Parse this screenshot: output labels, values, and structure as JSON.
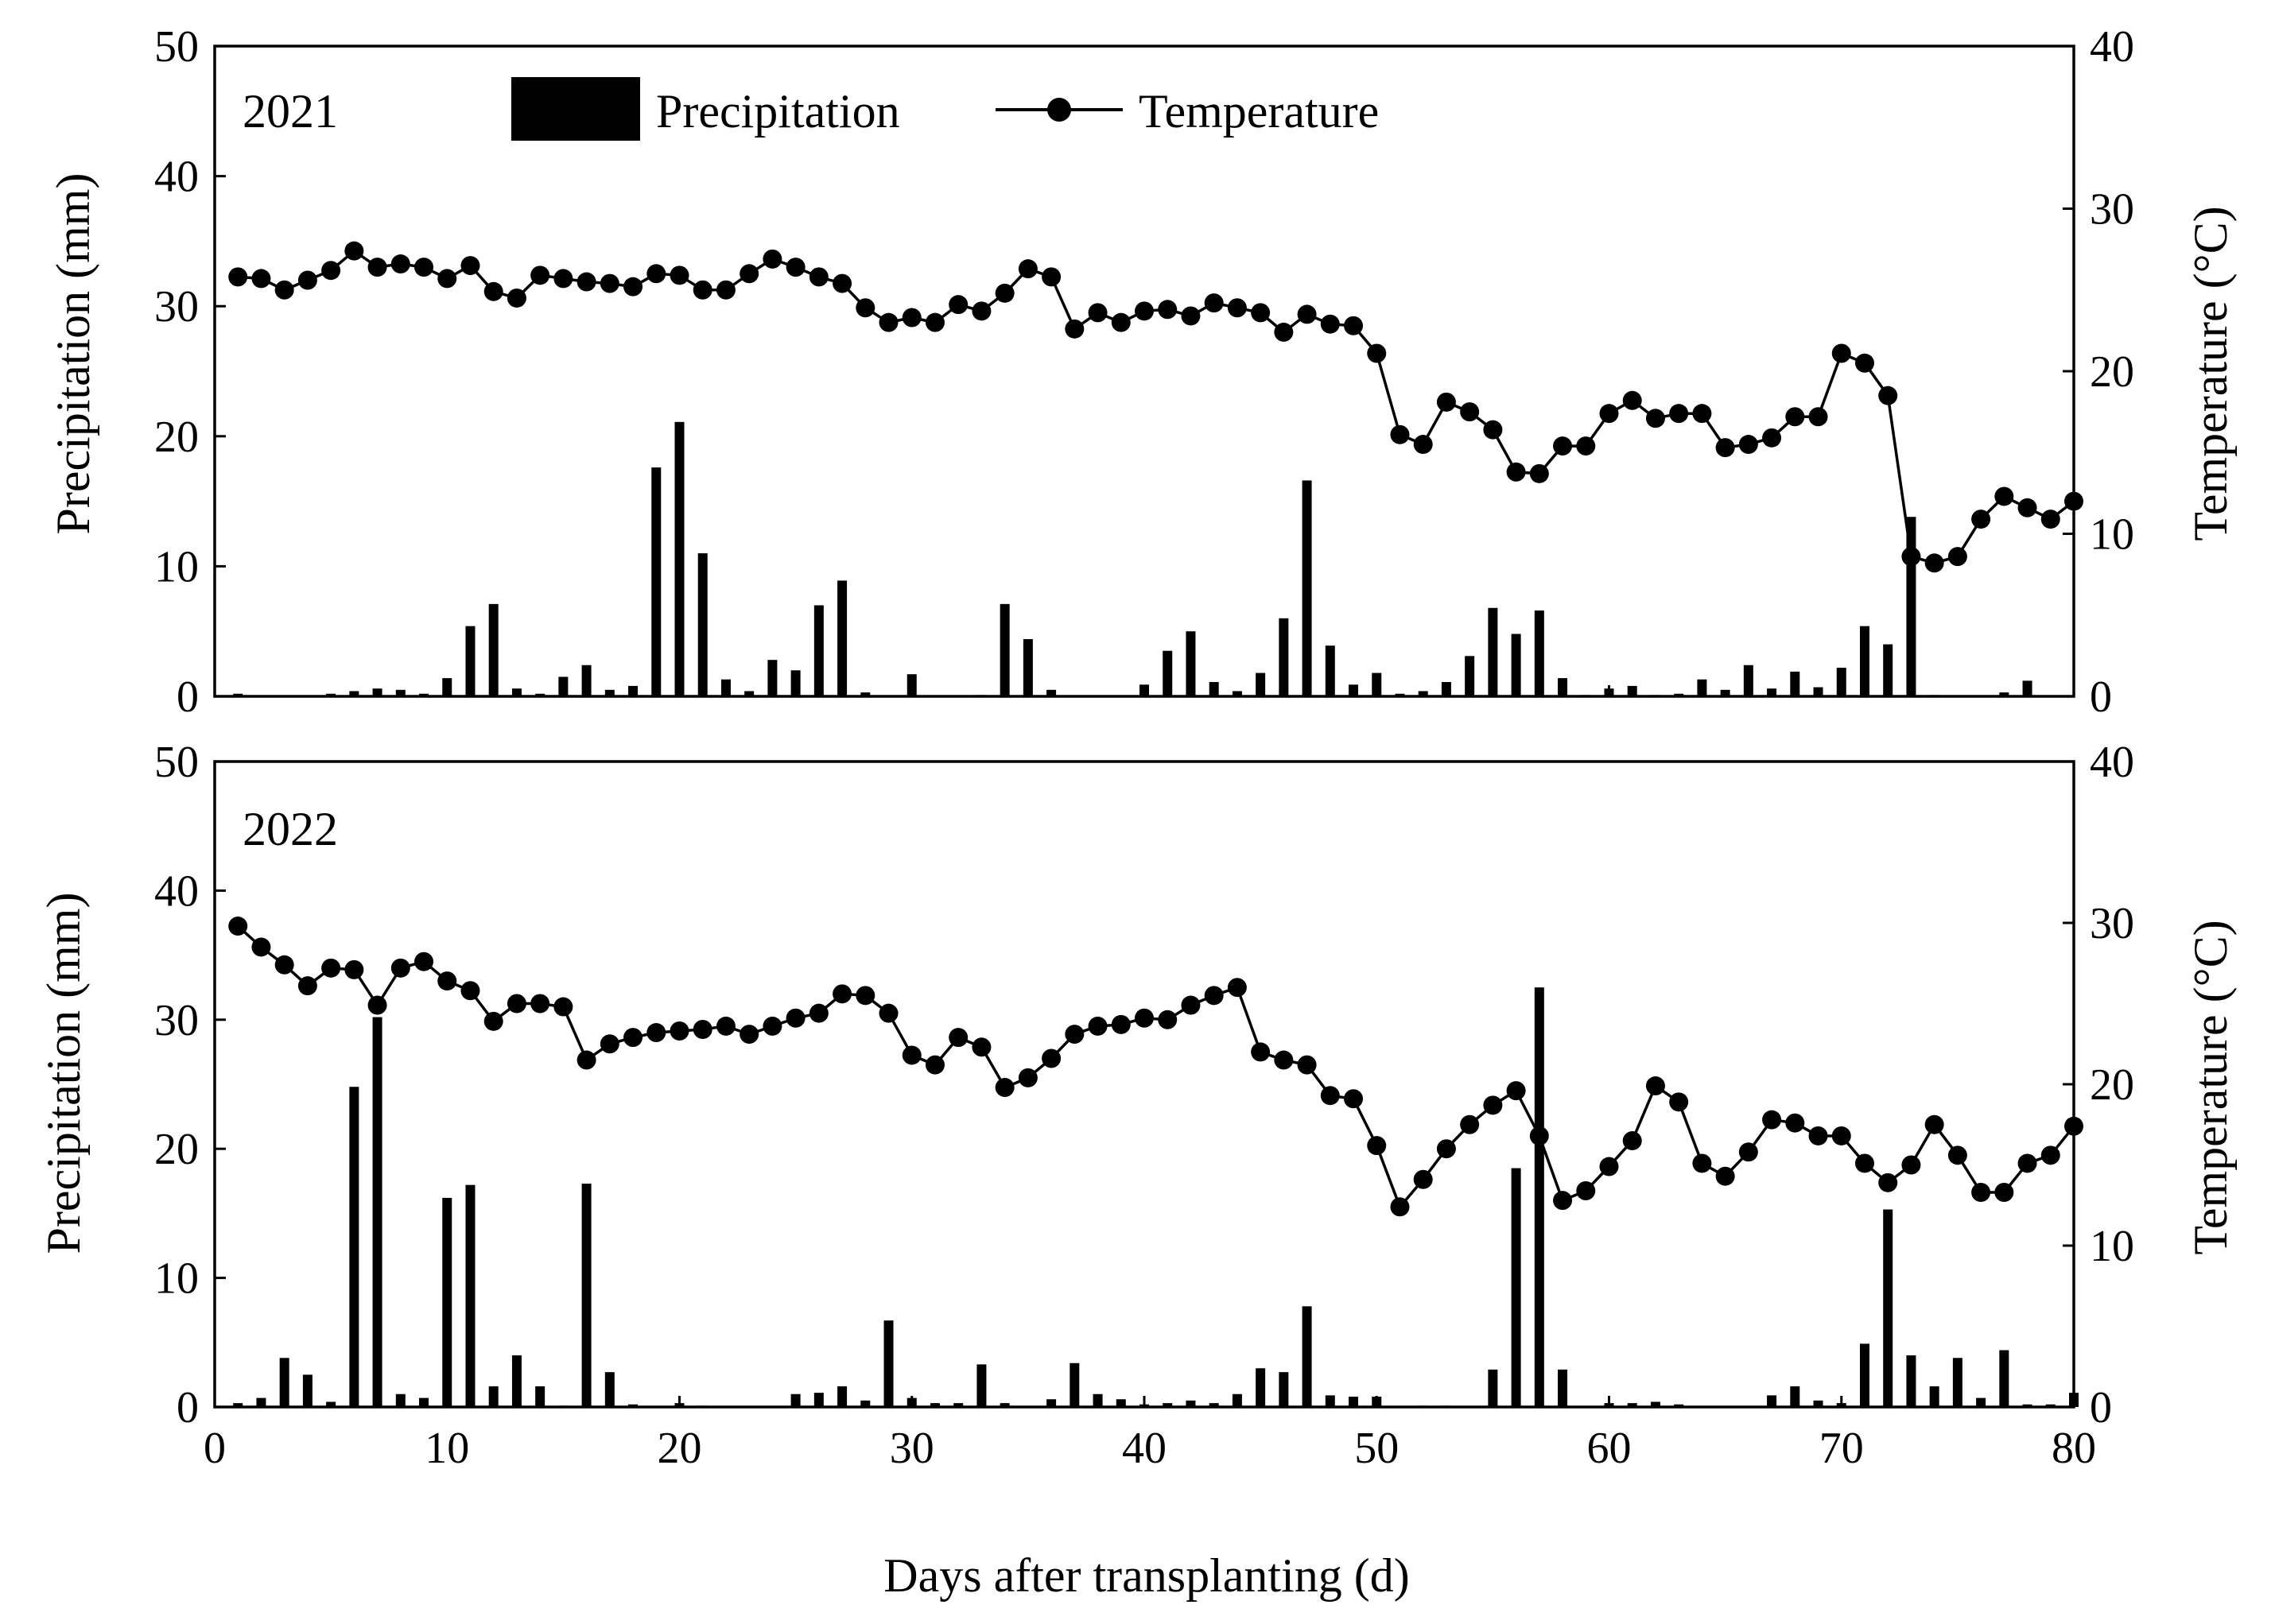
{
  "chart_data": [
    {
      "type": "bar+line",
      "panel_label": "2021",
      "x": [
        1,
        2,
        3,
        4,
        5,
        6,
        7,
        8,
        9,
        10,
        11,
        12,
        13,
        14,
        15,
        16,
        17,
        18,
        19,
        20,
        21,
        22,
        23,
        24,
        25,
        26,
        27,
        28,
        29,
        30,
        31,
        32,
        33,
        34,
        35,
        36,
        37,
        38,
        39,
        40,
        41,
        42,
        43,
        44,
        45,
        46,
        47,
        48,
        49,
        50,
        51,
        52,
        53,
        54,
        55,
        56,
        57,
        58,
        59,
        60,
        61,
        62,
        63,
        64,
        65,
        66,
        67,
        68,
        69,
        70,
        71,
        72,
        73,
        74,
        75,
        76,
        77,
        78,
        79,
        80
      ],
      "series": [
        {
          "name": "Precipitation",
          "kind": "bar",
          "axis": "left",
          "values": [
            0.2,
            0,
            0,
            0,
            0.2,
            0.4,
            0.6,
            0.5,
            0.2,
            1.4,
            5.4,
            7.1,
            0.6,
            0.2,
            1.5,
            2.4,
            0.5,
            0.8,
            17.6,
            21.1,
            11,
            1.3,
            0.4,
            2.8,
            2,
            7,
            8.9,
            0.3,
            0,
            1.7,
            0,
            0,
            0.1,
            7.1,
            4.4,
            0.5,
            0,
            0,
            0,
            0.9,
            3.5,
            5,
            1.1,
            0.4,
            1.8,
            6,
            16.6,
            3.9,
            0.9,
            1.8,
            0.2,
            0.4,
            1.1,
            3.1,
            6.8,
            4.8,
            6.6,
            1.4,
            0.1,
            0.6,
            0.8,
            0.1,
            0.2,
            1.3,
            0.5,
            2.4,
            0.6,
            1.9,
            0.7,
            2.2,
            5.4,
            4,
            13.8,
            0.1,
            0,
            0,
            0.3,
            1.2,
            0,
            0
          ]
        },
        {
          "name": "Temperature",
          "kind": "line",
          "axis": "right",
          "values": [
            25.8,
            25.7,
            25,
            25.6,
            26.2,
            27.4,
            26.4,
            26.6,
            26.4,
            25.7,
            26.5,
            24.9,
            24.5,
            25.9,
            25.7,
            25.5,
            25.4,
            25.2,
            26,
            25.9,
            25,
            25,
            26,
            26.9,
            26.4,
            25.8,
            25.4,
            23.9,
            23,
            23.3,
            23,
            24.1,
            23.7,
            24.8,
            26.3,
            25.8,
            22.6,
            23.6,
            23,
            23.7,
            23.8,
            23.4,
            24.2,
            23.9,
            23.6,
            22.4,
            23.5,
            22.9,
            22.8,
            21.1,
            16.1,
            15.5,
            18.1,
            17.5,
            16.4,
            13.8,
            13.7,
            15.4,
            15.4,
            17.4,
            18.2,
            17.1,
            17.4,
            17.4,
            15.3,
            15.5,
            15.9,
            17.2,
            17.2,
            21.1,
            20.5,
            18.5,
            8.6,
            8.2,
            8.6,
            10.9,
            12.3,
            11.6,
            10.9,
            12
          ]
        }
      ],
      "ylabel_left": "Precipitation (mm)",
      "ylabel_right": "Temperature (°C)",
      "ylim_left": [
        0,
        50
      ],
      "ylim_right": [
        0,
        40
      ],
      "yticks_left": [
        "0",
        "10",
        "20",
        "30",
        "40",
        "50"
      ],
      "yticks_right": [
        "0",
        "10",
        "20",
        "30",
        "40"
      ]
    },
    {
      "type": "bar+line",
      "panel_label": "2022",
      "x": [
        1,
        2,
        3,
        4,
        5,
        6,
        7,
        8,
        9,
        10,
        11,
        12,
        13,
        14,
        15,
        16,
        17,
        18,
        19,
        20,
        21,
        22,
        23,
        24,
        25,
        26,
        27,
        28,
        29,
        30,
        31,
        32,
        33,
        34,
        35,
        36,
        37,
        38,
        39,
        40,
        41,
        42,
        43,
        44,
        45,
        46,
        47,
        48,
        49,
        50,
        51,
        52,
        53,
        54,
        55,
        56,
        57,
        58,
        59,
        60,
        61,
        62,
        63,
        64,
        65,
        66,
        67,
        68,
        69,
        70,
        71,
        72,
        73,
        74,
        75,
        76,
        77,
        78,
        79,
        80
      ],
      "series": [
        {
          "name": "Precipitation",
          "kind": "bar",
          "axis": "left",
          "values": [
            0.3,
            0.7,
            3.8,
            2.5,
            0.4,
            24.8,
            30.2,
            1,
            0.7,
            16.2,
            17.2,
            1.6,
            4,
            1.6,
            0.1,
            17.3,
            2.7,
            0.2,
            0,
            0.3,
            0.1,
            0,
            0,
            0,
            1,
            1.1,
            1.6,
            0.5,
            6.7,
            0.7,
            0.3,
            0.3,
            3.3,
            0.3,
            0,
            0.6,
            3.4,
            1,
            0.6,
            0.2,
            0.3,
            0.5,
            0.3,
            1,
            3,
            2.7,
            7.8,
            0.9,
            0.8,
            0.8,
            0,
            0.1,
            0.1,
            0,
            2.9,
            18.5,
            32.5,
            2.9,
            0,
            0.3,
            0.3,
            0.4,
            0.2,
            0,
            0,
            0,
            0.9,
            1.6,
            0.5,
            0.3,
            4.9,
            15.3,
            4,
            1.6,
            3.8,
            0.7,
            4.4,
            0.2,
            0.2,
            1.1
          ]
        },
        {
          "name": "Temperature",
          "kind": "line",
          "axis": "right",
          "values": [
            29.8,
            28.5,
            27.4,
            26.1,
            27.2,
            27.1,
            24.9,
            27.2,
            27.6,
            26.4,
            25.8,
            23.9,
            25,
            25,
            24.8,
            21.5,
            22.5,
            22.9,
            23.2,
            23.3,
            23.4,
            23.6,
            23.1,
            23.6,
            24.1,
            24.4,
            25.6,
            25.5,
            24.4,
            21.8,
            21.2,
            22.9,
            22.3,
            19.8,
            20.4,
            21.6,
            23.1,
            23.6,
            23.7,
            24.1,
            24,
            24.9,
            25.5,
            26,
            22,
            21.5,
            21.2,
            19.3,
            19.1,
            16.2,
            12.4,
            14.1,
            16,
            17.5,
            18.7,
            19.6,
            16.8,
            12.8,
            13.4,
            14.9,
            16.5,
            19.9,
            18.9,
            15.1,
            14.3,
            15.8,
            17.8,
            17.6,
            16.8,
            16.8,
            15.1,
            13.9,
            15,
            17.5,
            15.6,
            13.3,
            13.3,
            15.1,
            15.6,
            17.4
          ]
        }
      ],
      "ylabel_left": "Precipitation (mm)",
      "ylabel_right": "Temperature (°C)",
      "ylim_left": [
        0,
        50
      ],
      "ylim_right": [
        0,
        40
      ],
      "yticks_left": [
        "0",
        "10",
        "20",
        "30",
        "40",
        "50"
      ],
      "yticks_right": [
        "0",
        "10",
        "20",
        "30",
        "40"
      ]
    }
  ],
  "shared_x_axis": {
    "label": "Days after transplanting (d)",
    "xlim": [
      0,
      80
    ],
    "ticks": [
      "0",
      "10",
      "20",
      "30",
      "40",
      "50",
      "60",
      "70",
      "80"
    ]
  },
  "legend": {
    "precipitation_label": "Precipitation",
    "temperature_label": "Temperature",
    "placement": "top-center of upper panel"
  },
  "colors": {
    "bar": "#000000",
    "line": "#000000",
    "marker": "#000000",
    "axis": "#000000",
    "background": "#ffffff"
  }
}
